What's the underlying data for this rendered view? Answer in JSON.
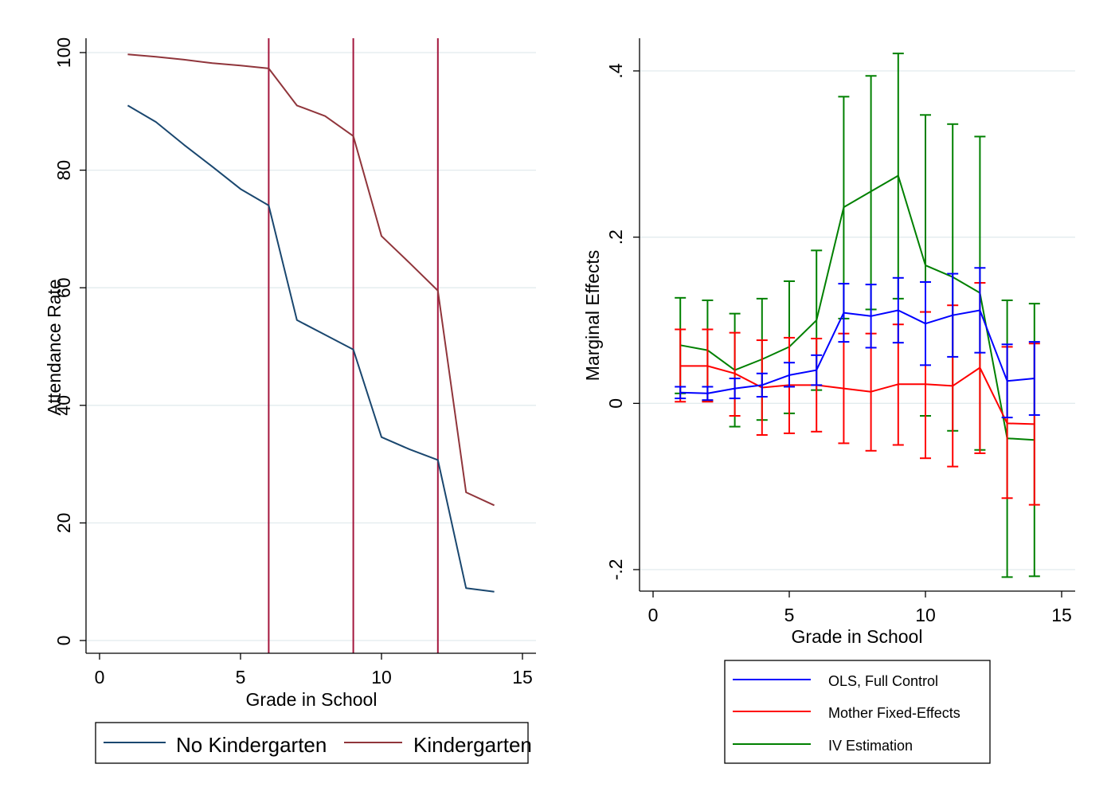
{
  "colors": {
    "no_kindergarten": "#1a476f",
    "kindergarten": "#90353b",
    "vline": "#a4163d",
    "ols": "#0000ff",
    "mfe": "#ff0000",
    "iv": "#008000",
    "grid": "#e2ebee"
  },
  "chart_data": [
    {
      "type": "line",
      "xlabel": "Grade in School",
      "ylabel": "Attendance Rate",
      "xlim": [
        0,
        15
      ],
      "ylim": [
        0,
        100
      ],
      "xticks": [
        "0",
        "5",
        "10",
        "15"
      ],
      "yticks": [
        "0",
        "20",
        "40",
        "60",
        "80",
        "100"
      ],
      "grid": true,
      "vertical_lines": [
        6,
        9,
        12
      ],
      "legend_position": "bottom",
      "x": [
        1,
        2,
        3,
        4,
        5,
        6,
        7,
        8,
        9,
        10,
        11,
        12,
        13,
        14
      ],
      "series": [
        {
          "name": "No Kindergarten",
          "values": [
            91,
            88.2,
            84.3,
            80.6,
            76.8,
            74,
            54.5,
            52,
            49.5,
            34.6,
            32.5,
            30.7,
            8.9,
            8.3
          ]
        },
        {
          "name": "Kindergarten",
          "values": [
            99.7,
            99.3,
            98.8,
            98.2,
            97.8,
            97.3,
            91,
            89.2,
            85.8,
            68.8,
            64.2,
            59.5,
            25.2,
            23
          ]
        }
      ]
    },
    {
      "type": "line",
      "xlabel": "Grade in School",
      "ylabel": "Marginal Effects",
      "xlim": [
        0,
        15
      ],
      "ylim": [
        -0.2,
        0.4
      ],
      "xticks": [
        "0",
        "5",
        "10",
        "15"
      ],
      "yticks": [
        "-.2",
        "0",
        ".2",
        ".4"
      ],
      "grid": true,
      "legend_position": "bottom",
      "x": [
        1,
        2,
        3,
        4,
        5,
        6,
        7,
        8,
        9,
        10,
        11,
        12,
        13,
        14
      ],
      "series": [
        {
          "name": "OLS, Full Control",
          "values": [
            0.013,
            0.012,
            0.018,
            0.022,
            0.034,
            0.04,
            0.109,
            0.105,
            0.112,
            0.096,
            0.106,
            0.112,
            0.027,
            0.03
          ],
          "lower": [
            0.006,
            0.004,
            0.006,
            0.008,
            0.02,
            0.022,
            0.074,
            0.067,
            0.073,
            0.046,
            0.056,
            0.061,
            -0.017,
            -0.014
          ],
          "upper": [
            0.02,
            0.02,
            0.03,
            0.036,
            0.049,
            0.058,
            0.144,
            0.143,
            0.151,
            0.146,
            0.156,
            0.163,
            0.071,
            0.074
          ]
        },
        {
          "name": "Mother Fixed-Effects",
          "values": [
            0.045,
            0.045,
            0.036,
            0.019,
            0.022,
            0.022,
            0.018,
            0.014,
            0.023,
            0.023,
            0.021,
            0.043,
            -0.024,
            -0.025
          ],
          "lower": [
            0.002,
            0.002,
            -0.015,
            -0.038,
            -0.036,
            -0.034,
            -0.048,
            -0.057,
            -0.05,
            -0.066,
            -0.076,
            -0.06,
            -0.114,
            -0.122
          ],
          "upper": [
            0.089,
            0.089,
            0.085,
            0.076,
            0.079,
            0.078,
            0.084,
            0.084,
            0.095,
            0.11,
            0.118,
            0.145,
            0.068,
            0.072
          ]
        },
        {
          "name": "IV Estimation",
          "values": [
            0.07,
            0.064,
            0.04,
            0.053,
            0.068,
            0.1,
            0.236,
            0.255,
            0.274,
            0.166,
            0.152,
            0.133,
            -0.042,
            -0.044
          ],
          "lower": [
            0.012,
            0.003,
            -0.028,
            -0.02,
            -0.012,
            0.016,
            0.102,
            0.113,
            0.126,
            -0.015,
            -0.033,
            -0.056,
            -0.209,
            -0.208
          ],
          "upper": [
            0.127,
            0.124,
            0.108,
            0.126,
            0.147,
            0.184,
            0.369,
            0.394,
            0.421,
            0.347,
            0.336,
            0.321,
            0.124,
            0.12
          ]
        }
      ]
    }
  ]
}
